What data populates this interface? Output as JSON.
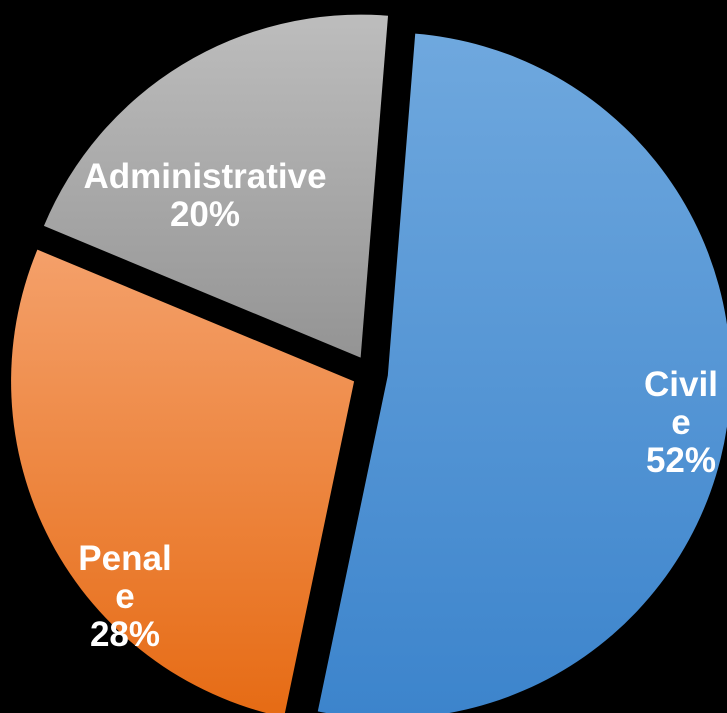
{
  "chart_data": {
    "type": "pie",
    "slices": [
      {
        "label_lines": [
          "Civil",
          "e"
        ],
        "value_text": "52%",
        "value": 52,
        "color": "#4a8fd4"
      },
      {
        "label_lines": [
          "Penal",
          "e"
        ],
        "value_text": "28%",
        "value": 28,
        "color": "#ec7320"
      },
      {
        "label_lines": [
          "Administrative"
        ],
        "value_text": "20%",
        "value": 20,
        "color": "#a5a5a5"
      }
    ]
  }
}
